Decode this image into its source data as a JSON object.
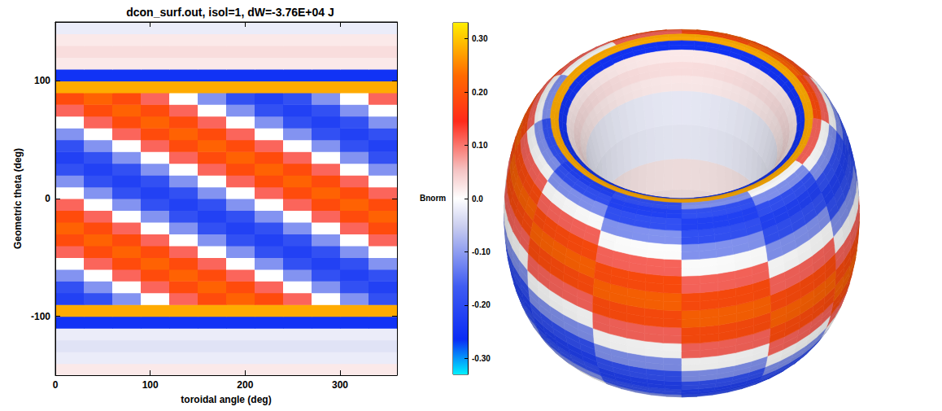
{
  "chart_data": {
    "type": "heatmap",
    "title": "dcon_surf.out, isol=1, dW=-3.76E+04 J",
    "x_label": "toroidal angle (deg)",
    "y_label": "Geometric theta (deg)",
    "xlim": [
      0,
      360
    ],
    "xticks": [
      0,
      100,
      200,
      300
    ],
    "ylim": [
      -150,
      150
    ],
    "yticks": [
      -100,
      0,
      100
    ],
    "x": [
      15,
      45,
      75,
      105,
      135,
      165,
      195,
      225,
      255,
      285,
      315,
      345
    ],
    "y": [
      -145,
      -135,
      -125,
      -115,
      -105,
      -95,
      -85,
      -75,
      -65,
      -55,
      -45,
      -35,
      -25,
      -15,
      -5,
      5,
      15,
      25,
      35,
      45,
      55,
      65,
      75,
      85,
      95,
      105,
      115,
      125,
      135,
      145
    ],
    "values": [
      [
        0.02,
        0.02,
        0.02,
        0.02,
        0.02,
        0.02,
        0.02,
        0.02,
        0.02,
        0.02,
        0.02,
        0.02
      ],
      [
        -0.02,
        -0.02,
        -0.02,
        -0.02,
        -0.02,
        -0.02,
        -0.02,
        -0.02,
        -0.02,
        -0.02,
        -0.02,
        -0.02
      ],
      [
        -0.03,
        -0.03,
        -0.03,
        -0.03,
        -0.03,
        -0.03,
        -0.03,
        -0.03,
        -0.03,
        -0.03,
        -0.03,
        -0.03
      ],
      [
        -0.02,
        -0.02,
        -0.02,
        -0.02,
        -0.02,
        -0.02,
        -0.02,
        -0.02,
        -0.02,
        -0.02,
        -0.02,
        -0.02
      ],
      [
        -0.25,
        -0.25,
        -0.25,
        -0.25,
        -0.25,
        -0.25,
        -0.25,
        -0.25,
        -0.25,
        -0.25,
        -0.25,
        -0.25
      ],
      [
        0.28,
        0.28,
        0.28,
        0.28,
        0.28,
        0.28,
        0.28,
        0.28,
        0.28,
        0.28,
        0.28,
        0.28
      ],
      [
        -0.22,
        -0.19,
        -0.11,
        0,
        0.11,
        0.19,
        0.22,
        0.19,
        0.11,
        0,
        -0.11,
        -0.19
      ],
      [
        -0.19,
        -0.11,
        0,
        0.11,
        0.19,
        0.22,
        0.19,
        0.11,
        0,
        -0.11,
        -0.19,
        -0.22
      ],
      [
        -0.11,
        0,
        0.11,
        0.19,
        0.22,
        0.19,
        0.11,
        0,
        -0.11,
        -0.19,
        -0.22,
        -0.19
      ],
      [
        0,
        0.11,
        0.19,
        0.22,
        0.19,
        0.11,
        0,
        -0.11,
        -0.19,
        -0.22,
        -0.19,
        -0.11
      ],
      [
        0.11,
        0.19,
        0.22,
        0.19,
        0.11,
        0,
        -0.11,
        -0.19,
        -0.22,
        -0.19,
        -0.11,
        0
      ],
      [
        0.19,
        0.22,
        0.19,
        0.11,
        0,
        -0.11,
        -0.19,
        -0.22,
        -0.19,
        -0.11,
        0,
        0.11
      ],
      [
        0.22,
        0.19,
        0.11,
        0,
        -0.11,
        -0.19,
        -0.22,
        -0.19,
        -0.11,
        0,
        0.11,
        0.19
      ],
      [
        0.19,
        0.11,
        0,
        -0.11,
        -0.19,
        -0.22,
        -0.19,
        -0.11,
        0,
        0.11,
        0.19,
        0.22
      ],
      [
        0.11,
        0,
        -0.11,
        -0.19,
        -0.22,
        -0.19,
        -0.11,
        0,
        0.11,
        0.19,
        0.22,
        0.19
      ],
      [
        0,
        -0.11,
        -0.19,
        -0.22,
        -0.19,
        -0.11,
        0,
        0.11,
        0.19,
        0.22,
        0.19,
        0.11
      ],
      [
        -0.11,
        -0.19,
        -0.22,
        -0.19,
        -0.11,
        0,
        0.11,
        0.19,
        0.22,
        0.19,
        0.11,
        0
      ],
      [
        -0.19,
        -0.22,
        -0.19,
        -0.11,
        0,
        0.11,
        0.19,
        0.22,
        0.19,
        0.11,
        0,
        -0.11
      ],
      [
        -0.22,
        -0.19,
        -0.11,
        0,
        0.11,
        0.19,
        0.22,
        0.19,
        0.11,
        0,
        -0.11,
        -0.19
      ],
      [
        -0.19,
        -0.11,
        0,
        0.11,
        0.19,
        0.22,
        0.19,
        0.11,
        0,
        -0.11,
        -0.19,
        -0.22
      ],
      [
        -0.11,
        0,
        0.11,
        0.19,
        0.22,
        0.19,
        0.11,
        0,
        -0.11,
        -0.19,
        -0.22,
        -0.19
      ],
      [
        0,
        0.11,
        0.19,
        0.22,
        0.19,
        0.11,
        0,
        -0.11,
        -0.19,
        -0.22,
        -0.19,
        -0.11
      ],
      [
        0.11,
        0.19,
        0.22,
        0.19,
        0.11,
        0,
        -0.11,
        -0.19,
        -0.22,
        -0.19,
        -0.11,
        0
      ],
      [
        0.19,
        0.22,
        0.19,
        0.11,
        0,
        -0.11,
        -0.19,
        -0.22,
        -0.19,
        -0.11,
        0,
        0.11
      ],
      [
        0.28,
        0.28,
        0.28,
        0.28,
        0.28,
        0.28,
        0.28,
        0.28,
        0.28,
        0.28,
        0.28,
        0.28
      ],
      [
        -0.25,
        -0.25,
        -0.25,
        -0.25,
        -0.25,
        -0.25,
        -0.25,
        -0.25,
        -0.25,
        -0.25,
        -0.25,
        -0.25
      ],
      [
        0.02,
        0.02,
        0.02,
        0.02,
        0.02,
        0.02,
        0.02,
        0.02,
        0.02,
        0.02,
        0.02,
        0.02
      ],
      [
        0.03,
        0.03,
        0.03,
        0.03,
        0.03,
        0.03,
        0.03,
        0.03,
        0.03,
        0.03,
        0.03,
        0.03
      ],
      [
        0.02,
        0.02,
        0.02,
        0.02,
        0.02,
        0.02,
        0.02,
        0.02,
        0.02,
        0.02,
        0.02,
        0.02
      ],
      [
        -0.02,
        -0.02,
        -0.02,
        -0.02,
        -0.02,
        -0.02,
        -0.02,
        -0.02,
        -0.02,
        -0.02,
        -0.02,
        -0.02
      ]
    ],
    "colorbar": {
      "label": "Bnorm",
      "range": [
        -0.33,
        0.33
      ],
      "ticks": [
        {
          "value": -0.3,
          "label": "-0.30"
        },
        {
          "value": -0.2,
          "label": "-0.20"
        },
        {
          "value": -0.1,
          "label": "-0.10"
        },
        {
          "value": 0,
          "label": "0.0"
        },
        {
          "value": 0.1,
          "label": "0.10"
        },
        {
          "value": 0.2,
          "label": "0.20"
        },
        {
          "value": 0.3,
          "label": "0.30"
        }
      ]
    }
  }
}
